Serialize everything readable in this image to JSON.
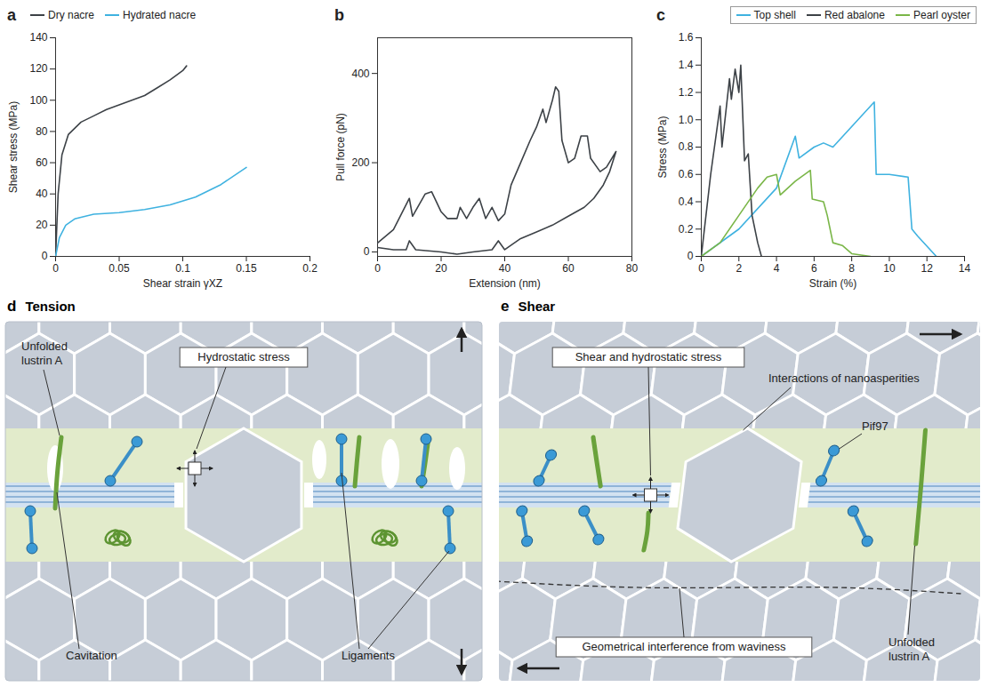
{
  "chart_data": [
    {
      "panel": "a",
      "type": "line",
      "x_label": "Shear strain γXZ",
      "y_label": "Shear stress (MPa)",
      "xlim": [
        0,
        0.2
      ],
      "xticks": [
        0,
        0.05,
        0.1,
        0.15,
        0.2
      ],
      "ylim": [
        0,
        140
      ],
      "yticks": [
        0,
        20,
        40,
        60,
        80,
        100,
        120,
        140
      ],
      "legend": "top",
      "series": [
        {
          "name": "Dry nacre",
          "color": "#3d4247",
          "x": [
            0,
            0.002,
            0.005,
            0.01,
            0.02,
            0.03,
            0.04,
            0.05,
            0.06,
            0.07,
            0.08,
            0.09,
            0.1,
            0.103
          ],
          "values": [
            0,
            40,
            65,
            78,
            86,
            90,
            94,
            97,
            100,
            103,
            108,
            113,
            119,
            122
          ]
        },
        {
          "name": "Hydrated nacre",
          "color": "#3fb2e0",
          "x": [
            0,
            0.003,
            0.008,
            0.015,
            0.03,
            0.05,
            0.07,
            0.09,
            0.11,
            0.13,
            0.15
          ],
          "values": [
            0,
            12,
            20,
            24,
            27,
            28,
            30,
            33,
            38,
            46,
            57
          ]
        }
      ]
    },
    {
      "panel": "b",
      "type": "line",
      "x_label": "Extension (nm)",
      "y_label": "Pull force (pN)",
      "xlim": [
        0,
        80
      ],
      "xticks": [
        0,
        20,
        40,
        60,
        80
      ],
      "ylim": [
        -10,
        480
      ],
      "yticks": [
        0,
        200,
        400
      ],
      "series": [
        {
          "color": "#3d4247",
          "x": [
            0,
            5,
            10,
            11,
            15,
            17,
            20,
            22,
            25,
            26,
            28,
            30,
            32,
            34,
            36,
            38,
            40,
            42,
            45,
            48,
            50,
            52,
            53,
            55,
            56,
            57,
            58,
            60,
            62,
            64,
            66,
            67,
            70,
            72,
            75,
            73,
            71,
            68,
            65,
            60,
            55,
            50,
            45,
            42,
            40,
            38,
            36,
            30,
            25,
            20,
            12,
            10,
            9,
            5,
            0
          ],
          "values": [
            20,
            50,
            120,
            80,
            130,
            135,
            90,
            75,
            75,
            100,
            75,
            100,
            120,
            75,
            100,
            70,
            85,
            150,
            200,
            250,
            280,
            320,
            290,
            340,
            370,
            360,
            250,
            200,
            210,
            260,
            260,
            210,
            180,
            190,
            225,
            180,
            150,
            120,
            100,
            80,
            60,
            45,
            30,
            15,
            5,
            25,
            5,
            0,
            -5,
            0,
            5,
            25,
            5,
            5,
            10
          ]
        }
      ]
    },
    {
      "panel": "c",
      "type": "line",
      "x_label": "Strain (%)",
      "y_label": "Stress (MPa)",
      "xlim": [
        0,
        14
      ],
      "xticks": [
        0,
        2,
        4,
        6,
        8,
        10,
        12,
        14
      ],
      "ylim": [
        0,
        1.6
      ],
      "yticks": [
        0,
        0.2,
        0.4,
        0.6,
        0.8,
        {
          "value": 1,
          "label": "1.0"
        },
        1.2,
        1.4,
        1.6
      ],
      "legend": "top-right",
      "series": [
        {
          "name": "Top shell",
          "color": "#3fb2e0",
          "x": [
            0,
            2,
            4,
            5,
            5.2,
            6,
            6.5,
            7,
            9.2,
            9.3,
            10,
            11,
            11.2,
            11.5,
            12.5
          ],
          "values": [
            0,
            0.2,
            0.5,
            0.88,
            0.72,
            0.8,
            0.83,
            0.8,
            1.13,
            0.6,
            0.6,
            0.58,
            0.2,
            0.15,
            0
          ]
        },
        {
          "name": "Red abalone",
          "color": "#3d4247",
          "x": [
            0,
            0.5,
            1,
            1.1,
            1.5,
            1.6,
            1.8,
            2,
            2.1,
            2.3,
            2.5,
            2.7,
            3,
            3.2
          ],
          "values": [
            0,
            0.6,
            1.1,
            0.8,
            1.3,
            1.15,
            1.37,
            1.2,
            1.4,
            0.7,
            0.75,
            0.3,
            0.1,
            0
          ]
        },
        {
          "name": "Pearl oyster",
          "color": "#7ab648",
          "x": [
            0,
            1,
            2,
            3,
            3.5,
            4,
            4.2,
            5,
            5.8,
            5.9,
            6.5,
            6.7,
            7,
            7.5,
            8,
            9
          ],
          "values": [
            0,
            0.1,
            0.3,
            0.5,
            0.58,
            0.6,
            0.45,
            0.55,
            0.63,
            0.42,
            0.4,
            0.3,
            0.1,
            0.08,
            0.02,
            0
          ]
        }
      ]
    }
  ],
  "diagrams": [
    {
      "panel": "d",
      "title": "Tension",
      "labels": {
        "fiber": "Unfolded lustrin A",
        "stress": "Hydrostatic stress",
        "cavitation": "Cavitation",
        "ligaments": "Ligaments"
      }
    },
    {
      "panel": "e",
      "title": "Shear",
      "labels": {
        "stress": "Shear and hydrostatic stress",
        "asperities": "Interactions of nanoasperities",
        "protein": "Pif97",
        "waviness": "Geometrical interference from waviness",
        "fiber": "Unfolded lustrin A"
      }
    }
  ]
}
